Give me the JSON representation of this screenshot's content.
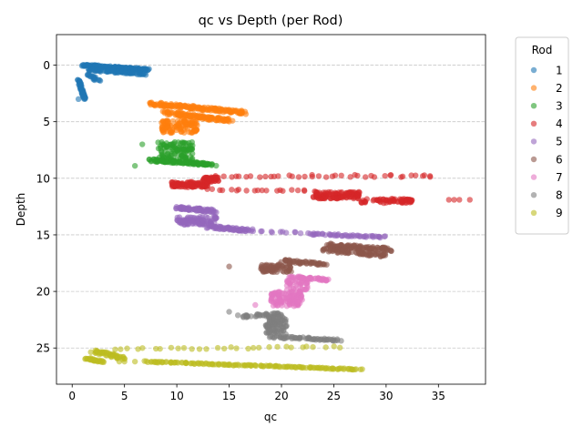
{
  "chart_data": {
    "type": "scatter",
    "title": "qc vs Depth (per Rod)",
    "xlabel": "qc",
    "ylabel": "Depth",
    "xlim": [
      -1.5,
      39.5
    ],
    "ylim": [
      28.2,
      -2.7
    ],
    "y_inverted": true,
    "xticks": [
      0,
      5,
      10,
      15,
      20,
      25,
      30,
      35
    ],
    "yticks": [
      0,
      5,
      10,
      15,
      20,
      25
    ],
    "grid": "y-dashed",
    "legend": {
      "title": "Rod",
      "position": "outside-right"
    },
    "series": [
      {
        "name": "1",
        "color": "#1f77b4",
        "regions": [
          {
            "type": "line",
            "x": [
              1.0,
              7.3
            ],
            "y": [
              0.0,
              0.4
            ],
            "n": 140,
            "jx": 0.3,
            "jy": 0.08
          },
          {
            "type": "line",
            "x": [
              1.5,
              7.0
            ],
            "y": [
              0.4,
              0.8
            ],
            "n": 70,
            "jx": 0.3,
            "jy": 0.08
          },
          {
            "type": "line",
            "x": [
              1.5,
              2.5
            ],
            "y": [
              0.8,
              1.4
            ],
            "n": 20,
            "jx": 0.2,
            "jy": 0.08
          },
          {
            "type": "line",
            "x": [
              0.6,
              1.2
            ],
            "y": [
              1.3,
              3.0
            ],
            "n": 55,
            "jx": 0.12,
            "jy": 0.04
          }
        ],
        "points": [
          [
            1.0,
            0.0
          ],
          [
            0.6,
            3.0
          ]
        ]
      },
      {
        "name": "2",
        "color": "#ff7f0e",
        "regions": [
          {
            "type": "line",
            "x": [
              7.5,
              16.5
            ],
            "y": [
              3.4,
              4.2
            ],
            "n": 150,
            "jx": 0.3,
            "jy": 0.15
          },
          {
            "type": "line",
            "x": [
              9.0,
              15.0
            ],
            "y": [
              4.2,
              4.9
            ],
            "n": 120,
            "jx": 0.4,
            "jy": 0.15
          },
          {
            "type": "rect",
            "x": [
              8.5,
              12.0
            ],
            "y": [
              4.9,
              6.0
            ],
            "n": 110
          }
        ],
        "points": [
          [
            7.5,
            3.5
          ]
        ]
      },
      {
        "name": "3",
        "color": "#2ca02c",
        "regions": [
          {
            "type": "rect",
            "x": [
              8.2,
              11.5
            ],
            "y": [
              6.8,
              8.6
            ],
            "n": 120
          },
          {
            "type": "line",
            "x": [
              7.5,
              13.5
            ],
            "y": [
              8.4,
              8.8
            ],
            "n": 110,
            "jx": 0.3,
            "jy": 0.1
          }
        ],
        "points": [
          [
            6.7,
            7.0
          ],
          [
            6.0,
            8.9
          ]
        ]
      },
      {
        "name": "4",
        "color": "#d62728",
        "regions": [
          {
            "type": "rect",
            "x": [
              9.5,
              13.0
            ],
            "y": [
              10.3,
              10.8
            ],
            "n": 100
          },
          {
            "type": "rect",
            "x": [
              12.5,
              14.0
            ],
            "y": [
              9.9,
              10.3
            ],
            "n": 50
          },
          {
            "type": "line",
            "x": [
              14.0,
              34.0
            ],
            "y": [
              9.8,
              9.8
            ],
            "n": 38,
            "jx": 0.3,
            "jy": 0.1
          },
          {
            "type": "line",
            "x": [
              13.0,
              23.0
            ],
            "y": [
              11.0,
              11.1
            ],
            "n": 20,
            "jx": 0.3,
            "jy": 0.06
          },
          {
            "type": "rect",
            "x": [
              23.0,
              27.5
            ],
            "y": [
              11.2,
              11.8
            ],
            "n": 110
          },
          {
            "type": "rect",
            "x": [
              27.5,
              32.5
            ],
            "y": [
              11.8,
              12.2
            ],
            "n": 70
          }
        ],
        "points": [
          [
            36.0,
            11.9
          ],
          [
            36.5,
            11.9
          ],
          [
            37.0,
            11.9
          ],
          [
            38.0,
            11.9
          ],
          [
            33.5,
            9.8
          ],
          [
            34.2,
            9.8
          ]
        ]
      },
      {
        "name": "5",
        "color": "#9467bd",
        "regions": [
          {
            "type": "line",
            "x": [
              10.0,
              13.5
            ],
            "y": [
              12.6,
              12.9
            ],
            "n": 80,
            "jx": 0.3,
            "jy": 0.12
          },
          {
            "type": "rect",
            "x": [
              10.0,
              13.8
            ],
            "y": [
              13.4,
              14.1
            ],
            "n": 100
          },
          {
            "type": "line",
            "x": [
              13.0,
              17.0
            ],
            "y": [
              14.3,
              14.6
            ],
            "n": 70,
            "jx": 0.3,
            "jy": 0.12
          },
          {
            "type": "line",
            "x": [
              17.0,
              22.0
            ],
            "y": [
              14.7,
              14.8
            ],
            "n": 12,
            "jx": 0.4,
            "jy": 0.06
          },
          {
            "type": "line",
            "x": [
              22.5,
              30.0
            ],
            "y": [
              14.9,
              15.2
            ],
            "n": 50,
            "jx": 0.3,
            "jy": 0.08
          }
        ],
        "points": []
      },
      {
        "name": "6",
        "color": "#8c564b",
        "regions": [
          {
            "type": "line",
            "x": [
              24.5,
              30.5
            ],
            "y": [
              15.9,
              16.3
            ],
            "n": 90,
            "jx": 0.4,
            "jy": 0.15
          },
          {
            "type": "line",
            "x": [
              24.0,
              30.0
            ],
            "y": [
              16.3,
              16.8
            ],
            "n": 80,
            "jx": 0.4,
            "jy": 0.15
          },
          {
            "type": "line",
            "x": [
              20.0,
              24.0
            ],
            "y": [
              17.3,
              17.6
            ],
            "n": 50,
            "jx": 0.4,
            "jy": 0.12
          },
          {
            "type": "rect",
            "x": [
              18.0,
              21.0
            ],
            "y": [
              17.6,
              18.3
            ],
            "n": 70
          }
        ],
        "points": [
          [
            15.0,
            17.8
          ]
        ]
      },
      {
        "name": "7",
        "color": "#e377c2",
        "regions": [
          {
            "type": "line",
            "x": [
              21.0,
              24.5
            ],
            "y": [
              18.7,
              19.0
            ],
            "n": 50,
            "jx": 0.3,
            "jy": 0.1
          },
          {
            "type": "rect",
            "x": [
              20.5,
              22.5
            ],
            "y": [
              19.0,
              20.0
            ],
            "n": 40
          },
          {
            "type": "rect",
            "x": [
              19.0,
              22.0
            ],
            "y": [
              20.0,
              21.3
            ],
            "n": 110
          }
        ],
        "points": [
          [
            17.5,
            21.2
          ]
        ]
      },
      {
        "name": "8",
        "color": "#7f7f7f",
        "regions": [
          {
            "type": "line",
            "x": [
              16.0,
              20.0
            ],
            "y": [
              22.2,
              22.0
            ],
            "n": 35,
            "jx": 0.3,
            "jy": 0.12
          },
          {
            "type": "rect",
            "x": [
              18.5,
              20.5
            ],
            "y": [
              22.2,
              23.8
            ],
            "n": 90
          },
          {
            "type": "line",
            "x": [
              19.0,
              25.5
            ],
            "y": [
              24.0,
              24.3
            ],
            "n": 60,
            "jx": 0.3,
            "jy": 0.1
          }
        ],
        "points": [
          [
            15.0,
            21.8
          ]
        ]
      },
      {
        "name": "9",
        "color": "#bcbd22",
        "regions": [
          {
            "type": "line",
            "x": [
              4.0,
              25.5
            ],
            "y": [
              25.1,
              24.9
            ],
            "n": 30,
            "jx": 0.3,
            "jy": 0.08
          },
          {
            "type": "line",
            "x": [
              2.0,
              5.0
            ],
            "y": [
              25.3,
              25.9
            ],
            "n": 50,
            "jx": 0.3,
            "jy": 0.15
          },
          {
            "type": "line",
            "x": [
              1.3,
              3.0
            ],
            "y": [
              25.9,
              26.2
            ],
            "n": 30,
            "jx": 0.2,
            "jy": 0.08
          },
          {
            "type": "line",
            "x": [
              7.0,
              27.5
            ],
            "y": [
              26.2,
              26.9
            ],
            "n": 160,
            "jx": 0.25,
            "jy": 0.05
          }
        ],
        "points": [
          [
            5.0,
            26.2
          ],
          [
            6.0,
            26.2
          ],
          [
            4.5,
            26.2
          ]
        ]
      }
    ]
  }
}
